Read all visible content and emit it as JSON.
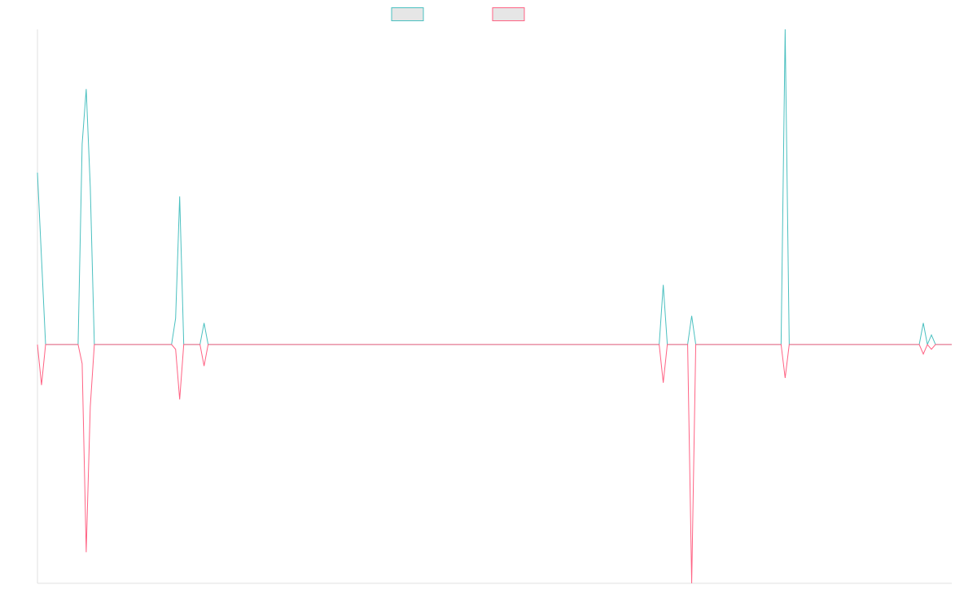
{
  "chart_data": {
    "type": "line",
    "ylim": [
      -100,
      132
    ],
    "series": [
      {
        "color": "#4bc0c0",
        "values": [
          72,
          36,
          0,
          0,
          0,
          0,
          0,
          0,
          0,
          0,
          0,
          84,
          107,
          66,
          0,
          0,
          0,
          0,
          0,
          0,
          0,
          0,
          0,
          0,
          0,
          0,
          0,
          0,
          0,
          0,
          0,
          0,
          0,
          0,
          11,
          62,
          0,
          0,
          0,
          0,
          0,
          9,
          0,
          0,
          0,
          0,
          0,
          0,
          0,
          0,
          0,
          0,
          0,
          0,
          0,
          0,
          0,
          0,
          0,
          0,
          0,
          0,
          0,
          0,
          0,
          0,
          0,
          0,
          0,
          0,
          0,
          0,
          0,
          0,
          0,
          0,
          0,
          0,
          0,
          0,
          0,
          0,
          0,
          0,
          0,
          0,
          0,
          0,
          0,
          0,
          0,
          0,
          0,
          0,
          0,
          0,
          0,
          0,
          0,
          0,
          0,
          0,
          0,
          0,
          0,
          0,
          0,
          0,
          0,
          0,
          0,
          0,
          0,
          0,
          0,
          0,
          0,
          0,
          0,
          0,
          0,
          0,
          0,
          0,
          0,
          0,
          0,
          0,
          0,
          0,
          0,
          0,
          0,
          0,
          0,
          0,
          0,
          0,
          0,
          0,
          0,
          0,
          0,
          0,
          0,
          0,
          0,
          0,
          0,
          0,
          0,
          0,
          0,
          0,
          25,
          0,
          0,
          0,
          0,
          0,
          0,
          12,
          0,
          0,
          0,
          0,
          0,
          0,
          0,
          0,
          0,
          0,
          0,
          0,
          0,
          0,
          0,
          0,
          0,
          0,
          0,
          0,
          0,
          0,
          132,
          0,
          0,
          0,
          0,
          0,
          0,
          0,
          0,
          0,
          0,
          0,
          0,
          0,
          0,
          0,
          0,
          0,
          0,
          0,
          0,
          0,
          0,
          0,
          0,
          0,
          0,
          0,
          0,
          0,
          0,
          0,
          0,
          0,
          9,
          0,
          4,
          0,
          0,
          0,
          0,
          0
        ]
      },
      {
        "color": "#ff6384",
        "values": [
          0,
          -17,
          0,
          0,
          0,
          0,
          0,
          0,
          0,
          0,
          0,
          -8,
          -87,
          -26,
          0,
          0,
          0,
          0,
          0,
          0,
          0,
          0,
          0,
          0,
          0,
          0,
          0,
          0,
          0,
          0,
          0,
          0,
          0,
          0,
          -2,
          -23,
          0,
          0,
          0,
          0,
          0,
          -9,
          0,
          0,
          0,
          0,
          0,
          0,
          0,
          0,
          0,
          0,
          0,
          0,
          0,
          0,
          0,
          0,
          0,
          0,
          0,
          0,
          0,
          0,
          0,
          0,
          0,
          0,
          0,
          0,
          0,
          0,
          0,
          0,
          0,
          0,
          0,
          0,
          0,
          0,
          0,
          0,
          0,
          0,
          0,
          0,
          0,
          0,
          0,
          0,
          0,
          0,
          0,
          0,
          0,
          0,
          0,
          0,
          0,
          0,
          0,
          0,
          0,
          0,
          0,
          0,
          0,
          0,
          0,
          0,
          0,
          0,
          0,
          0,
          0,
          0,
          0,
          0,
          0,
          0,
          0,
          0,
          0,
          0,
          0,
          0,
          0,
          0,
          0,
          0,
          0,
          0,
          0,
          0,
          0,
          0,
          0,
          0,
          0,
          0,
          0,
          0,
          0,
          0,
          0,
          0,
          0,
          0,
          0,
          0,
          0,
          0,
          0,
          0,
          -16,
          0,
          0,
          0,
          0,
          0,
          0,
          -100,
          0,
          0,
          0,
          0,
          0,
          0,
          0,
          0,
          0,
          0,
          0,
          0,
          0,
          0,
          0,
          0,
          0,
          0,
          0,
          0,
          0,
          0,
          -14,
          0,
          0,
          0,
          0,
          0,
          0,
          0,
          0,
          0,
          0,
          0,
          0,
          0,
          0,
          0,
          0,
          0,
          0,
          0,
          0,
          0,
          0,
          0,
          0,
          0,
          0,
          0,
          0,
          0,
          0,
          0,
          0,
          0,
          -4,
          0,
          -2,
          0,
          0,
          0,
          0,
          0
        ]
      }
    ]
  }
}
